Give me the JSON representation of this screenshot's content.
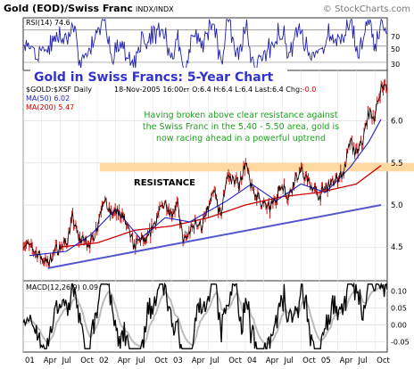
{
  "header": {
    "title": "Gold (EOD)/Swiss Franc",
    "exchange": "INDX/INDX",
    "copyright": "© StockCharts.com"
  },
  "rsi_panel": {
    "label": "RSI(14) 74.6",
    "levels": [
      "70",
      "50",
      "30"
    ]
  },
  "banner": "Gold in Swiss Francs: 5-Year Chart",
  "price_panel": {
    "symbol": "$GOLD:$XSF Daily",
    "ohlc": "18-Nov-2005 16:00",
    "ohlc_tz": "ET",
    "ohlc_vals": "O:6.4 H:6.4 L:6.4 Last:6.4 Chg:",
    "chg": "-0.0",
    "ma50": "MA(50) 6.02",
    "ma200": "MA(200) 5.47",
    "annotation": [
      "Having broken above clear resistance against",
      "the Swiss Franc in the 5.40 - 5.50 area, gold is",
      "now racing ahead in a powerful uptrend"
    ],
    "resistance_label": "RESISTANCE",
    "y_ticks": [
      "6.0",
      "5.5",
      "5.0",
      "4.5"
    ]
  },
  "macd_panel": {
    "label": "MACD(12,26,9) 0.09",
    "y_ticks": [
      "0.10",
      "0.05",
      "0.00",
      "-0.05"
    ]
  },
  "x_axis": {
    "labels": [
      "01",
      "Apr",
      "Jul",
      "Oct",
      "02",
      "Apr",
      "Jul",
      "Oct",
      "03",
      "Apr",
      "Jul",
      "Oct",
      "04",
      "Apr",
      "Jul",
      "Oct",
      "05",
      "Apr",
      "Jul",
      "Oct"
    ]
  },
  "colors": {
    "price": "#000000",
    "bars": "#cc0000",
    "ma50": "#2222cc",
    "ma200": "#cc0000",
    "trendline": "#5555cc",
    "resistance_band": "#ffd9a0",
    "annotation_text": "#20a020",
    "banner_bg": "#ffffff",
    "banner_text": "#3333cc",
    "rsi_line": "#2222aa",
    "macd_line": "#000000",
    "macd_signal": "#bbbbbb",
    "grid": "#d8d8d8",
    "chg_text": "#dd0000"
  },
  "chart_data": {
    "type": "line",
    "title": "Gold (EOD)/Swiss Franc",
    "x_range": [
      "2001-01",
      "2005-11"
    ],
    "ylim": [
      4.1,
      6.6
    ],
    "series": [
      {
        "name": "$GOLD:$XSF Daily",
        "points": [
          [
            "2001-01",
            4.55
          ],
          [
            "2001-03",
            4.45
          ],
          [
            "2001-05",
            4.3
          ],
          [
            "2001-06",
            4.45
          ],
          [
            "2001-08",
            4.55
          ],
          [
            "2001-09",
            4.85
          ],
          [
            "2001-10",
            4.6
          ],
          [
            "2001-12",
            4.55
          ],
          [
            "2002-01",
            4.75
          ],
          [
            "2002-02",
            5.1
          ],
          [
            "2002-03",
            4.9
          ],
          [
            "2002-05",
            4.9
          ],
          [
            "2002-06",
            4.7
          ],
          [
            "2002-07",
            4.5
          ],
          [
            "2002-08",
            4.6
          ],
          [
            "2002-09",
            4.55
          ],
          [
            "2002-10",
            4.75
          ],
          [
            "2002-12",
            5.05
          ],
          [
            "2003-01",
            4.9
          ],
          [
            "2003-02",
            5.0
          ],
          [
            "2003-03",
            4.55
          ],
          [
            "2003-05",
            4.8
          ],
          [
            "2003-06",
            4.75
          ],
          [
            "2003-08",
            5.15
          ],
          [
            "2003-09",
            4.85
          ],
          [
            "2003-10",
            5.35
          ],
          [
            "2003-12",
            5.25
          ],
          [
            "2004-01",
            5.5
          ],
          [
            "2004-02",
            5.2
          ],
          [
            "2004-04",
            5.0
          ],
          [
            "2004-05",
            4.95
          ],
          [
            "2004-06",
            5.1
          ],
          [
            "2004-07",
            5.25
          ],
          [
            "2004-08",
            5.1
          ],
          [
            "2004-09",
            5.3
          ],
          [
            "2004-10",
            5.4
          ],
          [
            "2004-12",
            5.2
          ],
          [
            "2005-01",
            5.1
          ],
          [
            "2005-02",
            5.2
          ],
          [
            "2005-03",
            5.25
          ],
          [
            "2005-05",
            5.4
          ],
          [
            "2005-06",
            5.75
          ],
          [
            "2005-07",
            5.6
          ],
          [
            "2005-08",
            5.75
          ],
          [
            "2005-09",
            6.1
          ],
          [
            "2005-10",
            6.05
          ],
          [
            "2005-11",
            6.4
          ]
        ]
      },
      {
        "name": "MA(50) 6.02",
        "points": [
          [
            "2001-02",
            4.4
          ],
          [
            "2001-08",
            4.45
          ],
          [
            "2001-12",
            4.65
          ],
          [
            "2002-04",
            4.95
          ],
          [
            "2002-08",
            4.6
          ],
          [
            "2002-12",
            4.85
          ],
          [
            "2003-04",
            4.8
          ],
          [
            "2003-10",
            5.05
          ],
          [
            "2004-02",
            5.25
          ],
          [
            "2004-06",
            5.05
          ],
          [
            "2004-10",
            5.25
          ],
          [
            "2005-02",
            5.15
          ],
          [
            "2005-06",
            5.45
          ],
          [
            "2005-09",
            5.75
          ],
          [
            "2005-11",
            6.02
          ]
        ]
      },
      {
        "name": "MA(200) 5.47",
        "points": [
          [
            "2001-07",
            4.5
          ],
          [
            "2002-01",
            4.55
          ],
          [
            "2002-07",
            4.7
          ],
          [
            "2003-01",
            4.75
          ],
          [
            "2003-07",
            4.85
          ],
          [
            "2004-01",
            5.0
          ],
          [
            "2004-07",
            5.1
          ],
          [
            "2005-01",
            5.15
          ],
          [
            "2005-07",
            5.25
          ],
          [
            "2005-11",
            5.47
          ]
        ]
      }
    ],
    "resistance_band": [
      5.4,
      5.5
    ],
    "trendline": [
      [
        "2001-05",
        4.25
      ],
      [
        "2005-11",
        5.0
      ]
    ],
    "rsi": {
      "label": "RSI(14) 74.6",
      "levels": [
        70,
        50,
        30
      ],
      "ylim": [
        20,
        85
      ]
    },
    "macd": {
      "label": "MACD(12,26,9) 0.09",
      "ylim": [
        -0.08,
        0.13
      ],
      "ticks": [
        0.1,
        0.05,
        0.0,
        -0.05
      ]
    }
  }
}
